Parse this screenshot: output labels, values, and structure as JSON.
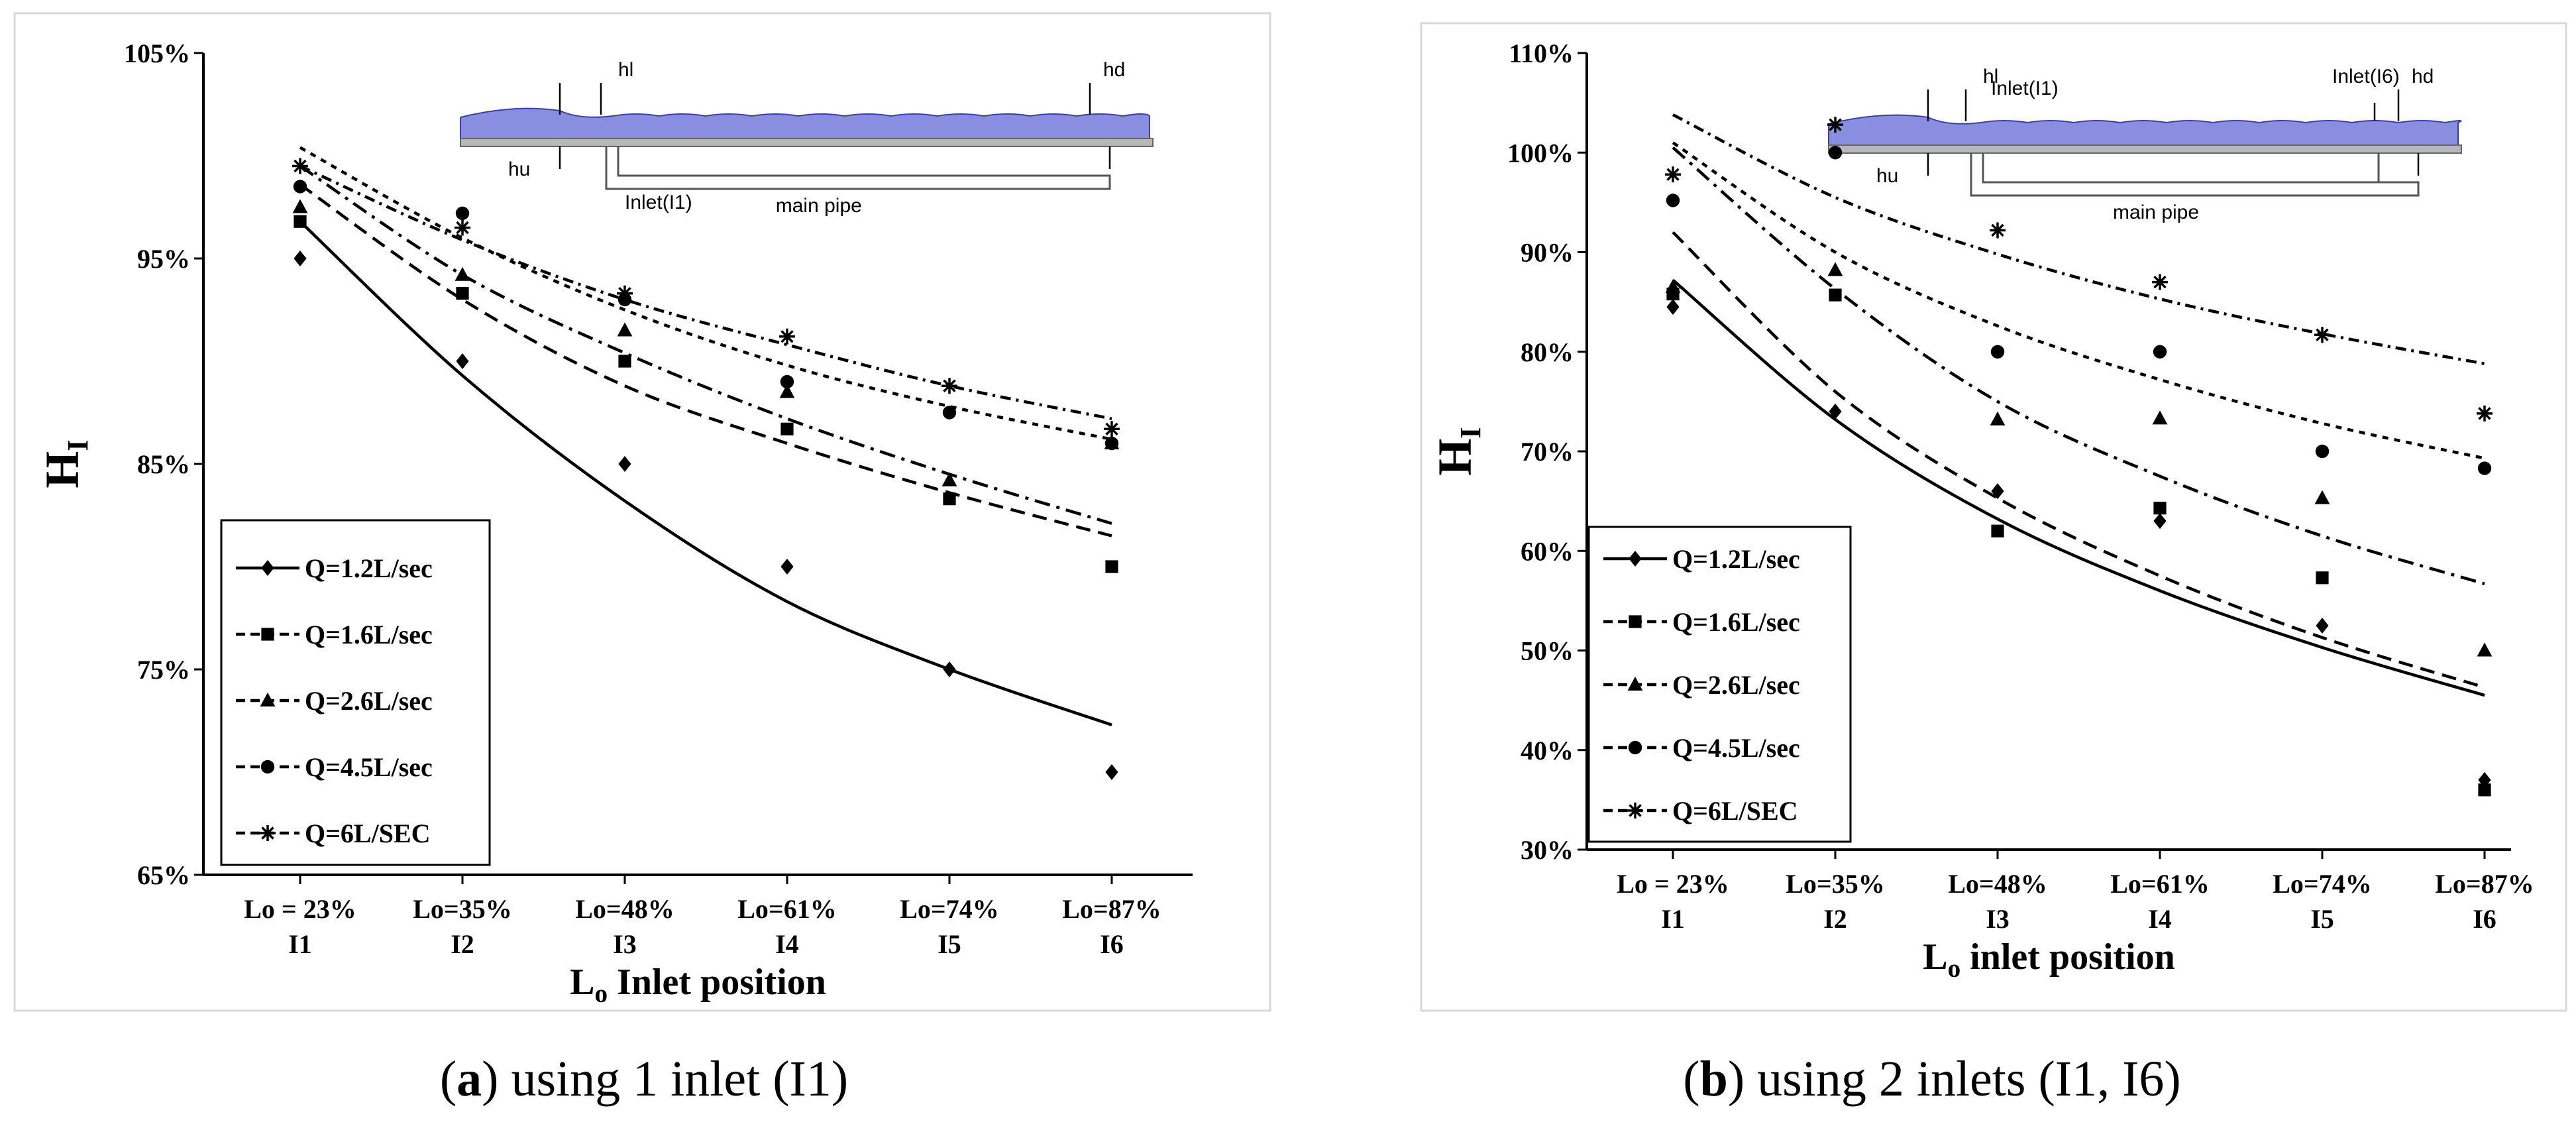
{
  "charts": [
    {
      "panel_letter": "a",
      "caption_text": ") using 1 inlet (I1)",
      "chart_data": {
        "type": "line",
        "ylabel": "H",
        "ylabel_sub": "I",
        "xlabel": "L",
        "xlabel_sub": "o",
        "xlabel_rest": " Inlet position",
        "ylim": [
          65,
          105
        ],
        "yticks": [
          65,
          75,
          85,
          95,
          105
        ],
        "ytick_labels": [
          "65%",
          "75%",
          "85%",
          "95%",
          "105%"
        ],
        "categories": [
          {
            "top": "Lo = 23%",
            "bottom": "I1"
          },
          {
            "top": "Lo=35%",
            "bottom": "I2"
          },
          {
            "top": "Lo=48%",
            "bottom": "I3"
          },
          {
            "top": "Lo=61%",
            "bottom": "I4"
          },
          {
            "top": "Lo=74%",
            "bottom": "I5"
          },
          {
            "top": "Lo=87%",
            "bottom": "I6"
          }
        ],
        "series": [
          {
            "name": "Q=1.2L/sec",
            "marker": "diamond",
            "dash": "solid",
            "points": [
              95,
              90,
              85,
              80,
              75,
              70
            ],
            "fit": [
              96.8,
              89.3,
              83.2,
              78.3,
              75.0,
              72.3
            ]
          },
          {
            "name": "Q=1.6L/sec",
            "marker": "square",
            "dash": "dash",
            "points": [
              96.8,
              93.3,
              90,
              86.7,
              83.3,
              80
            ],
            "fit": [
              98.6,
              93.0,
              88.8,
              86.0,
              83.6,
              81.5
            ]
          },
          {
            "name": "Q=2.6L/sec",
            "marker": "triangle",
            "dash": "dashdot",
            "points": [
              97.5,
              94.2,
              91.5,
              88.5,
              84.2,
              86
            ],
            "fit": [
              99.5,
              94.2,
              90.4,
              87.2,
              84.5,
              82.1
            ]
          },
          {
            "name": "Q=4.5L/sec",
            "marker": "circle",
            "dash": "dot",
            "points": [
              98.5,
              97.2,
              93,
              89,
              87.5,
              86
            ],
            "fit": [
              100.4,
              96.0,
              92.5,
              89.8,
              87.8,
              86.2
            ]
          },
          {
            "name": "Q=6L/SEC",
            "marker": "asterisk",
            "dash": "longdash",
            "points": [
              99.5,
              96.5,
              93.3,
              91.2,
              88.8,
              86.7
            ],
            "fit": [
              99.5,
              95.9,
              93.0,
              90.8,
              88.8,
              87.2
            ]
          }
        ],
        "diagram_labels": {
          "hl": "hl",
          "hd": "hd",
          "hu": "hu",
          "inlet1": "Inlet(I1)",
          "main_pipe": "main pipe"
        }
      }
    },
    {
      "panel_letter": "b",
      "caption_text": ") using 2 inlets (I1, I6)",
      "chart_data": {
        "type": "line",
        "ylabel": "H",
        "ylabel_sub": "I",
        "xlabel": "L",
        "xlabel_sub": "o",
        "xlabel_rest": " inlet position",
        "ylim": [
          30,
          110
        ],
        "yticks": [
          30,
          40,
          50,
          60,
          70,
          80,
          90,
          100,
          110
        ],
        "ytick_labels": [
          "30%",
          "40%",
          "50%",
          "60%",
          "70%",
          "80%",
          "90%",
          "100%",
          "110%"
        ],
        "categories": [
          {
            "top": "Lo = 23%",
            "bottom": "I1"
          },
          {
            "top": "Lo=35%",
            "bottom": "I2"
          },
          {
            "top": "Lo=48%",
            "bottom": "I3"
          },
          {
            "top": "Lo=61%",
            "bottom": "I4"
          },
          {
            "top": "Lo=74%",
            "bottom": "I5"
          },
          {
            "top": "Lo=87%",
            "bottom": "I6"
          }
        ],
        "series": [
          {
            "name": "Q=1.2L/sec",
            "marker": "diamond",
            "dash": "solid",
            "points": [
              84.5,
              74,
              66,
              63,
              52.5,
              37
            ],
            "fit": [
              87.2,
              73.2,
              63.2,
              56.0,
              50.3,
              45.5
            ]
          },
          {
            "name": "Q=1.6L/sec",
            "marker": "square",
            "dash": "dash",
            "points": [
              85.8,
              85.7,
              62,
              64.3,
              57.3,
              36
            ],
            "fit": [
              92.0,
              76.0,
              65.3,
              57.5,
              51.3,
              46.3
            ]
          },
          {
            "name": "Q=2.6L/sec",
            "marker": "triangle",
            "dash": "dashdot",
            "points": [
              86.5,
              88.2,
              73.2,
              73.3,
              65.3,
              50
            ],
            "fit": [
              100.5,
              86.3,
              75.0,
              67.5,
              61.5,
              56.7
            ]
          },
          {
            "name": "Q=4.5L/sec",
            "marker": "circle",
            "dash": "dot",
            "points": [
              95.2,
              100,
              80,
              80,
              70,
              68.3
            ],
            "fit": [
              101.0,
              90.0,
              82.6,
              77.2,
              72.8,
              69.3
            ]
          },
          {
            "name": "Q=6L/SEC",
            "marker": "asterisk",
            "dash": "longdash",
            "points": [
              97.8,
              102.8,
              92.2,
              87,
              81.7,
              73.8
            ],
            "fit": [
              103.8,
              95.5,
              89.8,
              85.3,
              81.8,
              78.8
            ]
          }
        ],
        "diagram_labels": {
          "hl": "hl",
          "hd": "hd",
          "hu": "hu",
          "inlet1": "Inlet(I1)",
          "inlet6": "Inlet(I6)",
          "main_pipe": "main pipe"
        }
      }
    }
  ]
}
